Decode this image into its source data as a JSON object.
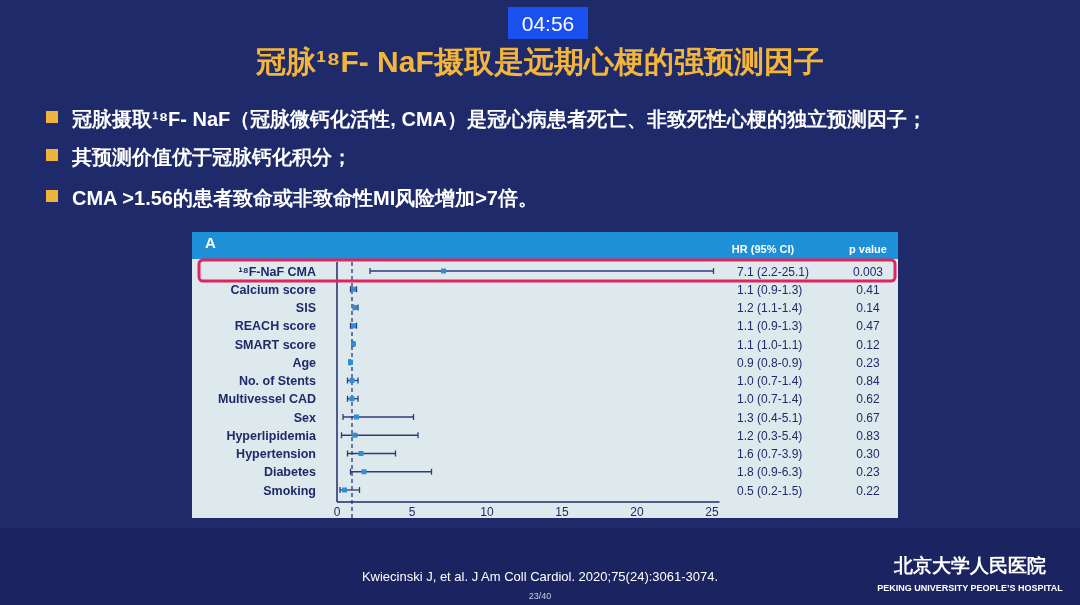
{
  "chart_data": {
    "type": "scatter",
    "orientation": "horizontal",
    "title": "冠脉¹⁸F- NaF摄取是远期心梗的强预测因子",
    "categories": [
      "¹⁸F-NaF CMA",
      "Calcium score",
      "SIS",
      "REACH score",
      "SMART score",
      "Age",
      "No. of Stents",
      "Multivessel CAD",
      "Sex",
      "Hyperlipidemia",
      "Hypertension",
      "Diabetes",
      "Smoking"
    ],
    "values": [
      7.1,
      1.1,
      1.2,
      1.1,
      1.1,
      0.9,
      1.0,
      1.0,
      1.3,
      1.2,
      1.6,
      1.8,
      0.5
    ],
    "errors": [
      [
        2.2,
        25.1
      ],
      [
        0.9,
        1.3
      ],
      [
        1.1,
        1.4
      ],
      [
        0.9,
        1.3
      ],
      [
        1.0,
        1.1
      ],
      [
        0.8,
        0.9
      ],
      [
        0.7,
        1.4
      ],
      [
        0.7,
        1.4
      ],
      [
        0.4,
        5.1
      ],
      [
        0.3,
        5.4
      ],
      [
        0.7,
        3.9
      ],
      [
        0.9,
        6.3
      ],
      [
        0.2,
        1.5
      ]
    ],
    "color": "#2f8fd6",
    "marker": "square",
    "xlim": [
      0,
      25.5
    ],
    "xticks": [
      0,
      5,
      10,
      15,
      20,
      25
    ],
    "grid": false,
    "ref_lines": [
      {
        "axis": "x",
        "value": 1,
        "line_style": "dashed",
        "color": "#1f2a6b"
      }
    ],
    "annotations": [
      "A",
      "HR (95% CI)",
      "p value",
      "冠脉摄取¹⁸F- NaF（冠脉微钙化活性, CMA）是冠心病患者死亡、非致死性心梗的独立预测因子；",
      "其预测价值优于冠脉钙化积分；",
      "CMA >1.56的患者致命或非致命性MI风险增加>7倍。",
      "Kwiecinski J, et al. J Am Coll Cardiol. 2020;75(24):3061-3074.",
      "北京大学人民医院",
      "PEKING UNIVERSITY PEOPLE’S HOSPITAL",
      "04:56",
      "23/40",
      "7.1 (2.2-25.1)",
      "1.1 (0.9-1.3)",
      "1.2 (1.1-1.4)",
      "1.1 (0.9-1.3)",
      "1.1 (1.0-1.1)",
      "0.9 (0.8-0.9)",
      "1.0 (0.7-1.4)",
      "1.0 (0.7-1.4)",
      "1.3 (0.4-5.1)",
      "1.2 (0.3-5.4)",
      "1.6 (0.7-3.9)",
      "1.8 (0.9-6.3)",
      "0.5 (0.2-1.5)",
      "0.003",
      "0.41",
      "0.14",
      "0.47",
      "0.12",
      "0.23",
      "0.84",
      "0.62",
      "0.67",
      "0.83",
      "0.30",
      "0.23",
      "0.22"
    ]
  }
}
